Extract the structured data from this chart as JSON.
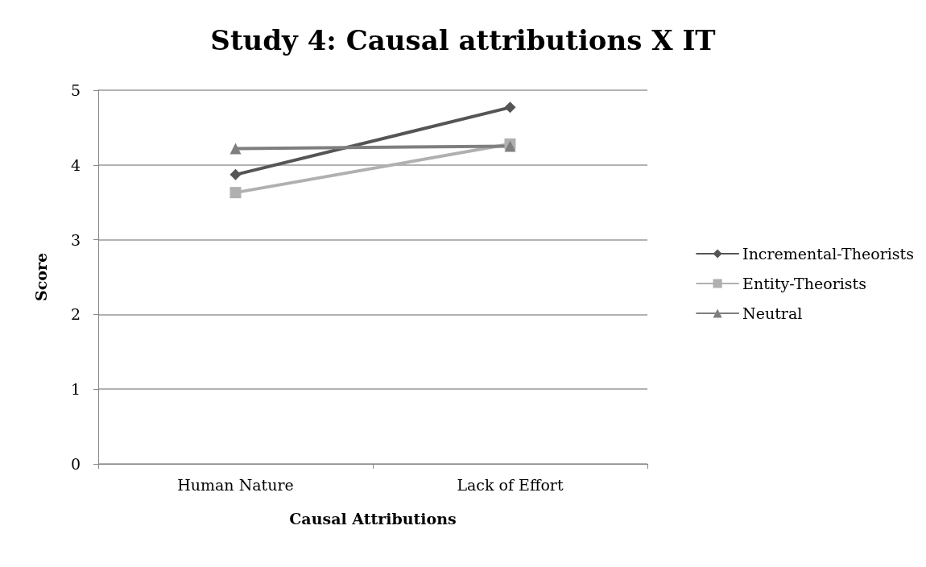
{
  "chart_data": {
    "type": "line",
    "title": "Study 4: Causal attributions X IT",
    "xlabel": "Causal Attributions",
    "ylabel": "Score",
    "categories": [
      "Human Nature",
      "Lack of Effort"
    ],
    "series": [
      {
        "name": "Incremental-Theorists",
        "color": "#555555",
        "marker": "diamond",
        "values": [
          3.87,
          4.77
        ]
      },
      {
        "name": "Entity-Theorists",
        "color": "#b0b0b0",
        "marker": "square",
        "values": [
          3.63,
          4.28
        ]
      },
      {
        "name": "Neutral",
        "color": "#7f7f7f",
        "marker": "triangle",
        "values": [
          4.22,
          4.25
        ]
      }
    ],
    "ylim": [
      0,
      5
    ],
    "yticks": [
      0,
      1,
      2,
      3,
      4,
      5
    ],
    "grid": "y",
    "legend": "right"
  }
}
